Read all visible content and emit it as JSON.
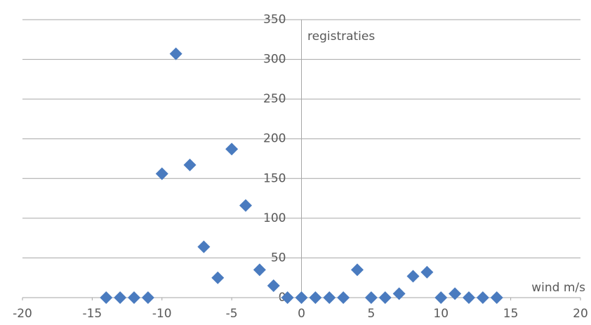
{
  "chart_data": {
    "type": "scatter",
    "x_label": "wind m/s",
    "y_label": "registraties",
    "x": [
      -14,
      -13,
      -12,
      -11,
      -10,
      -9,
      -8,
      -7,
      -6,
      -5,
      -4,
      -3,
      -2,
      -1,
      0,
      1,
      2,
      3,
      4,
      5,
      6,
      7,
      8,
      9,
      10,
      11,
      12,
      13,
      14
    ],
    "values": [
      0,
      0,
      0,
      0,
      156,
      307,
      167,
      64,
      25,
      187,
      116,
      35,
      15,
      0,
      0,
      0,
      0,
      0,
      35,
      0,
      0,
      5,
      27,
      32,
      0,
      5,
      0,
      0,
      0
    ],
    "color": "#4a7bbf",
    "xlim": [
      -20,
      20
    ],
    "xticks": [
      -20,
      -15,
      -10,
      -5,
      0,
      5,
      10,
      15,
      20
    ],
    "ylim": [
      0,
      350
    ],
    "yticks": [
      0,
      50,
      100,
      150,
      200,
      250,
      300,
      350
    ],
    "grid": true
  }
}
